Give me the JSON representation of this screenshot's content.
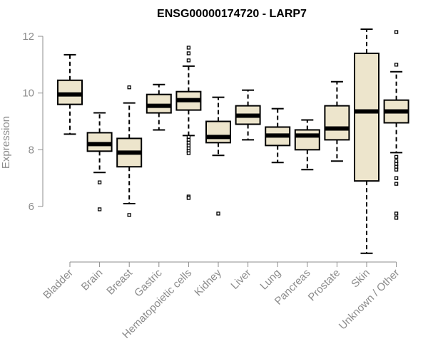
{
  "chart_data": {
    "type": "boxplot",
    "title": "ENSG00000174720 - LARP7",
    "xlabel": "",
    "ylabel": "Expression",
    "ylim": [
      4.0,
      12.4
    ],
    "yticks": [
      6,
      8,
      10,
      12
    ],
    "grid": false,
    "colors": {
      "box_fill": "#ede5cc",
      "stroke": "#000000",
      "axis": "#8c8c8c"
    },
    "categories": [
      "Bladder",
      "Brain",
      "Breast",
      "Gastric",
      "Hematopoietic cells",
      "Kidney",
      "Liver",
      "Lung",
      "Pancreas",
      "Prostate",
      "Skin",
      "Unknown / Other"
    ],
    "boxes": [
      {
        "category": "Bladder",
        "whisker_low": 8.55,
        "q1": 9.6,
        "median": 9.95,
        "q3": 10.45,
        "whisker_high": 11.35,
        "outliers": []
      },
      {
        "category": "Brain",
        "whisker_low": 7.2,
        "q1": 7.95,
        "median": 8.2,
        "q3": 8.6,
        "whisker_high": 9.3,
        "outliers": [
          6.85,
          5.9
        ]
      },
      {
        "category": "Breast",
        "whisker_low": 6.1,
        "q1": 7.4,
        "median": 7.9,
        "q3": 8.4,
        "whisker_high": 9.65,
        "outliers": [
          10.2,
          5.7
        ]
      },
      {
        "category": "Gastric",
        "whisker_low": 8.7,
        "q1": 9.3,
        "median": 9.55,
        "q3": 9.95,
        "whisker_high": 10.3,
        "outliers": []
      },
      {
        "category": "Hematopoietic cells",
        "whisker_low": 8.5,
        "q1": 9.4,
        "median": 9.75,
        "q3": 10.05,
        "whisker_high": 10.95,
        "outliers": [
          11.6,
          11.4,
          11.15,
          8.45,
          8.35,
          8.25,
          8.15,
          8.05,
          7.95,
          7.88,
          6.35,
          6.3
        ]
      },
      {
        "category": "Kidney",
        "whisker_low": 7.8,
        "q1": 8.25,
        "median": 8.45,
        "q3": 9.0,
        "whisker_high": 9.85,
        "outliers": [
          5.75
        ]
      },
      {
        "category": "Liver",
        "whisker_low": 8.35,
        "q1": 8.9,
        "median": 9.2,
        "q3": 9.55,
        "whisker_high": 10.1,
        "outliers": []
      },
      {
        "category": "Lung",
        "whisker_low": 7.55,
        "q1": 8.15,
        "median": 8.5,
        "q3": 8.8,
        "whisker_high": 9.45,
        "outliers": []
      },
      {
        "category": "Pancreas",
        "whisker_low": 7.3,
        "q1": 8.0,
        "median": 8.5,
        "q3": 8.7,
        "whisker_high": 9.05,
        "outliers": []
      },
      {
        "category": "Prostate",
        "whisker_low": 7.6,
        "q1": 8.35,
        "median": 8.75,
        "q3": 9.55,
        "whisker_high": 10.4,
        "outliers": []
      },
      {
        "category": "Skin",
        "whisker_low": 4.35,
        "q1": 6.9,
        "median": 9.35,
        "q3": 11.4,
        "whisker_high": 12.25,
        "outliers": []
      },
      {
        "category": "Unknown / Other",
        "whisker_low": 7.9,
        "q1": 8.95,
        "median": 9.35,
        "q3": 9.75,
        "whisker_high": 10.75,
        "outliers": [
          12.15,
          11.0,
          7.75,
          7.6,
          7.5,
          7.4,
          7.3,
          7.0,
          6.8,
          5.75,
          5.6
        ]
      }
    ]
  }
}
